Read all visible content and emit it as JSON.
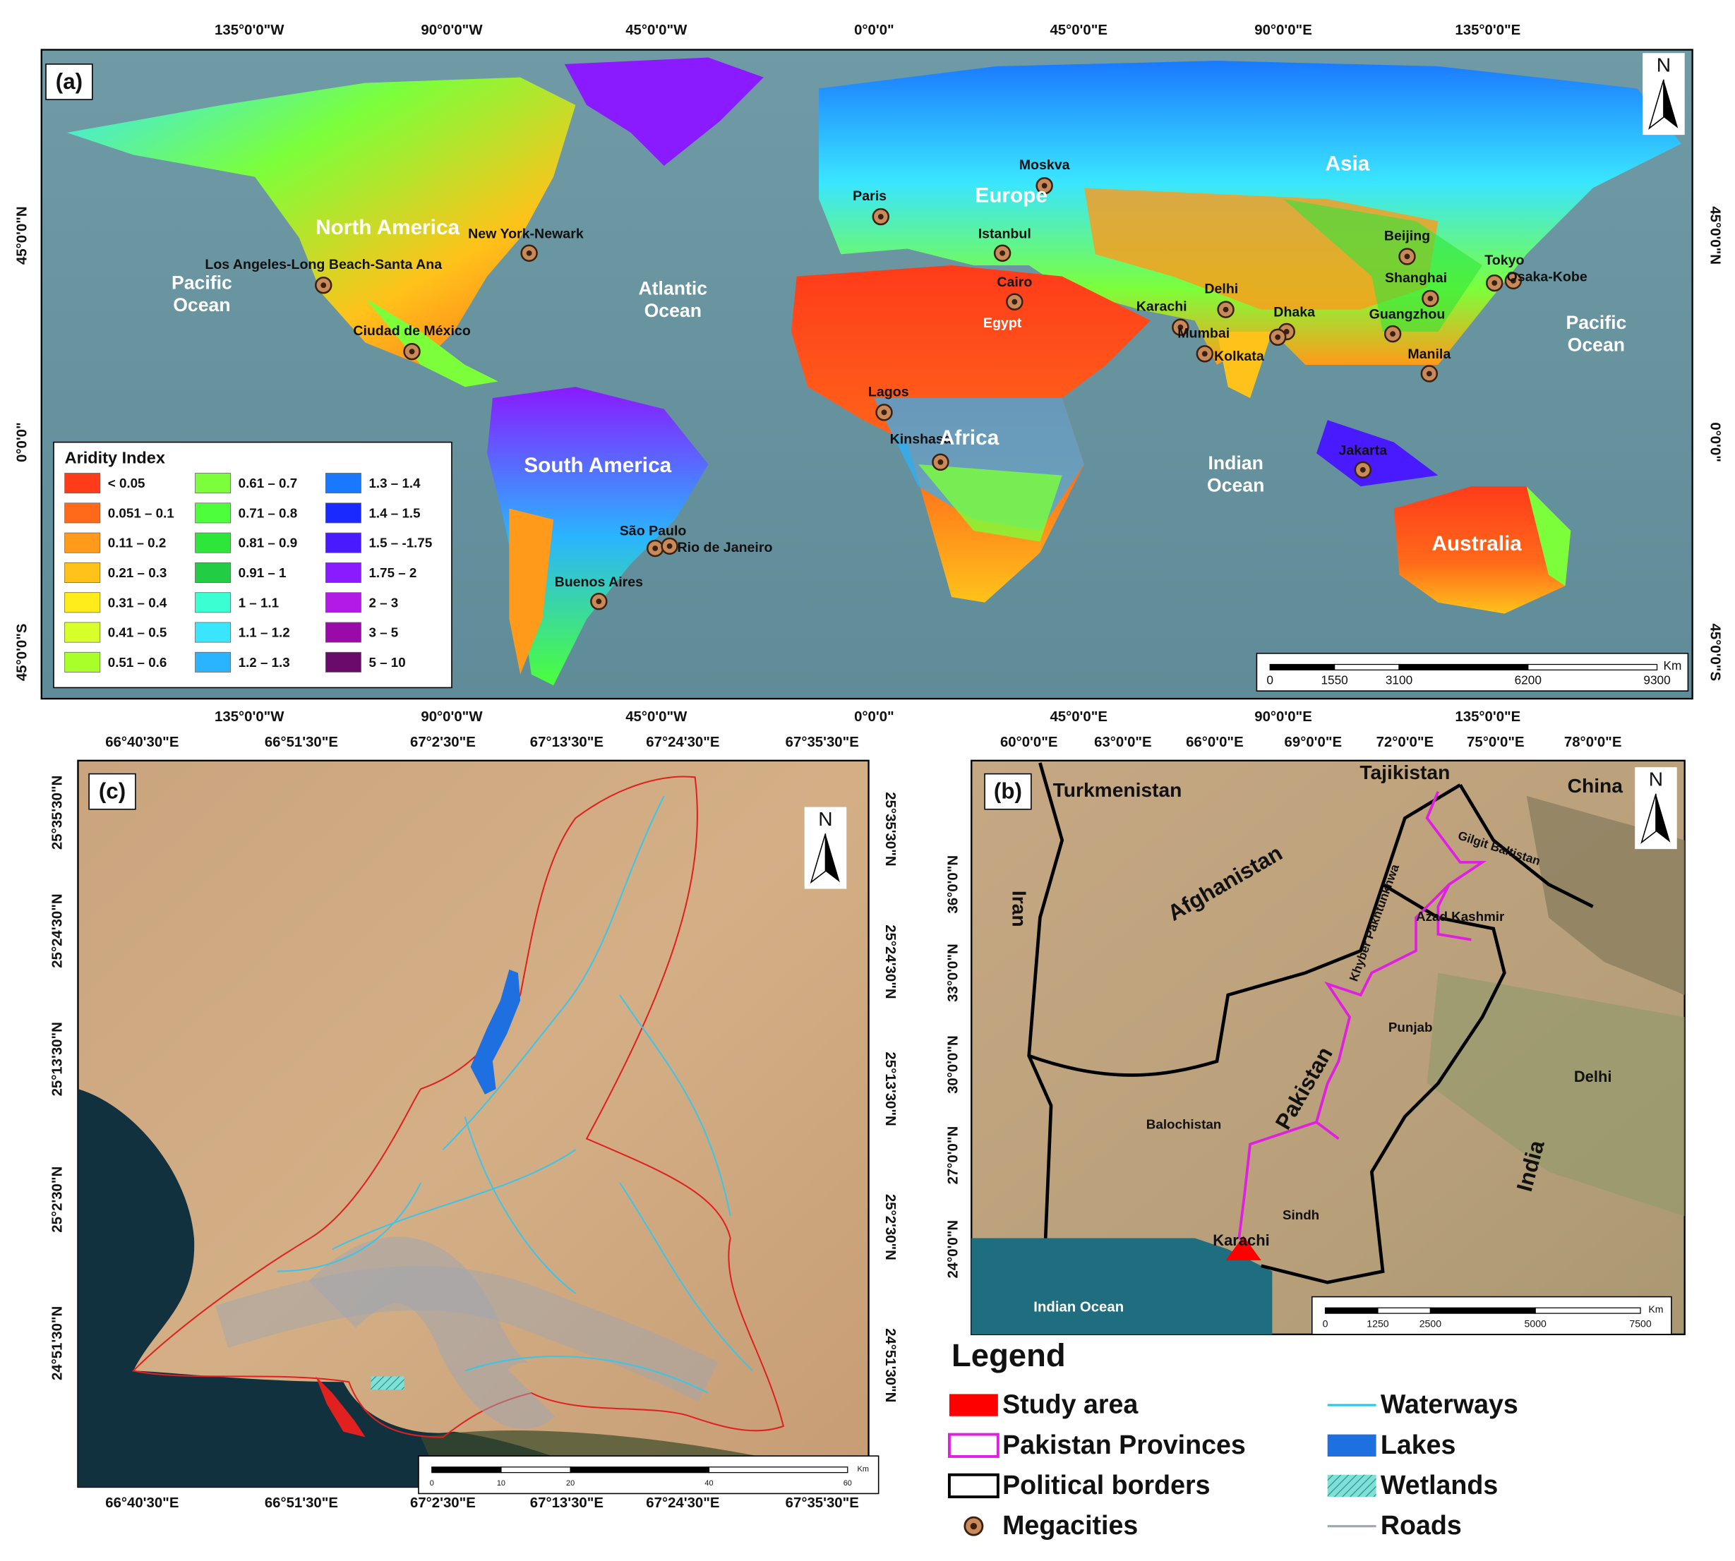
{
  "panel_a": {
    "label": "(a)",
    "north": "N",
    "lon_ticks": [
      "135°0'0\"W",
      "90°0'0\"W",
      "45°0'0\"W",
      "0°0'0\"",
      "45°0'0\"E",
      "90°0'0\"E",
      "135°0'0\"E"
    ],
    "lat_ticks": [
      "45°0'0\"N",
      "0°0'0\"",
      "45°0'0\"S"
    ],
    "continents": [
      "North America",
      "South America",
      "Europe",
      "Africa",
      "Asia",
      "Australia"
    ],
    "oceans": [
      {
        "lines": [
          "Pacific",
          "Ocean"
        ]
      },
      {
        "lines": [
          "Atlantic",
          "Ocean"
        ]
      },
      {
        "lines": [
          "Indian",
          "Ocean"
        ]
      },
      {
        "lines": [
          "Pacific",
          "Ocean"
        ]
      }
    ],
    "country": "Egypt",
    "cities": [
      "Moskva",
      "Paris",
      "New York-Newark",
      "Istanbul",
      "Los Angeles-Long Beach-Santa Ana",
      "Cairo",
      "Beijing",
      "Tokyo",
      "Osaka-Kobe",
      "Shanghai",
      "Delhi",
      "Karachi",
      "Dhaka",
      "Mumbai",
      "Kolkata",
      "Guangzhou",
      "Ciudad de México",
      "Manila",
      "Lagos",
      "Kinshasa",
      "Jakarta",
      "São Paulo",
      "Rio de Janeiro",
      "Buenos Aires"
    ],
    "aridity_legend": {
      "title": "Aridity Index",
      "items": [
        {
          "label": "< 0.05",
          "color": "#ff3b1a"
        },
        {
          "label": "0.051 – 0.1",
          "color": "#ff6a1a"
        },
        {
          "label": "0.11 – 0.2",
          "color": "#ff9a1a"
        },
        {
          "label": "0.21 – 0.3",
          "color": "#ffc21a"
        },
        {
          "label": "0.31 – 0.4",
          "color": "#ffec1a"
        },
        {
          "label": "0.41 – 0.5",
          "color": "#d8ff2a"
        },
        {
          "label": "0.51 – 0.6",
          "color": "#a8ff2a"
        },
        {
          "label": "0.61 – 0.7",
          "color": "#7cff3a"
        },
        {
          "label": "0.71 – 0.8",
          "color": "#4cff3a"
        },
        {
          "label": "0.81 – 0.9",
          "color": "#2ee63a"
        },
        {
          "label": "0.91 – 1",
          "color": "#22cc44"
        },
        {
          "label": "1 – 1.1",
          "color": "#3affd2"
        },
        {
          "label": "1.1 – 1.2",
          "color": "#3ae6ff"
        },
        {
          "label": "1.2 – 1.3",
          "color": "#2ab4ff"
        },
        {
          "label": "1.3 – 1.4",
          "color": "#1a78ff"
        },
        {
          "label": "1.4 – 1.5",
          "color": "#1a2aff"
        },
        {
          "label": "1.5 – -1.75",
          "color": "#4a1aff"
        },
        {
          "label": "1.75 – 2",
          "color": "#8a1aff"
        },
        {
          "label": "2 – 3",
          "color": "#b41ae6"
        },
        {
          "label": "3 – 5",
          "color": "#9a0aa8"
        },
        {
          "label": "5 – 10",
          "color": "#6a0a6a"
        }
      ]
    },
    "scale_bar": {
      "labels": [
        "0",
        "1550",
        "3100",
        "6200",
        "9300"
      ],
      "unit": "Km"
    }
  },
  "panel_b": {
    "label": "(b)",
    "north": "N",
    "lon_ticks": [
      "60°0'0\"E",
      "63°0'0\"E",
      "66°0'0\"E",
      "69°0'0\"E",
      "72°0'0\"E",
      "75°0'0\"E",
      "78°0'0\"E"
    ],
    "lat_ticks": [
      "36°0'0\"N",
      "33°0'0\"N",
      "30°0'0\"N",
      "27°0'0\"N",
      "24°0'0\"N"
    ],
    "places": [
      "Turkmenistan",
      "Tajikistan",
      "China",
      "Afghanistan",
      "Iran",
      "Gilgit Baltistan",
      "Khyber Pakhtunkhwa",
      "Azad Kashmir",
      "Punjab",
      "Pakistan",
      "Delhi",
      "Balochistan",
      "Sindh",
      "Karachi",
      "India",
      "Indian Ocean"
    ],
    "scale_bar": {
      "labels": [
        "0",
        "1250",
        "2500",
        "5000",
        "7500"
      ],
      "unit": "Km"
    }
  },
  "panel_c": {
    "label": "(c)",
    "north": "N",
    "lon_ticks": [
      "66°40'30\"E",
      "66°51'30\"E",
      "67°2'30\"E",
      "67°13'30\"E",
      "67°24'30\"E",
      "67°35'30\"E"
    ],
    "lat_ticks": [
      "25°35'30\"N",
      "25°24'30\"N",
      "25°13'30\"N",
      "25°2'30\"N",
      "24°51'30\"N"
    ],
    "scale_bar": {
      "labels": [
        "0",
        "10",
        "20",
        "40",
        "60"
      ],
      "unit": "Km"
    }
  },
  "legend": {
    "title": "Legend",
    "items": [
      "Study area",
      "Pakistan Provinces",
      "Political borders",
      "Megacities",
      "Waterways",
      "Lakes",
      "Wetlands",
      "Roads"
    ]
  }
}
